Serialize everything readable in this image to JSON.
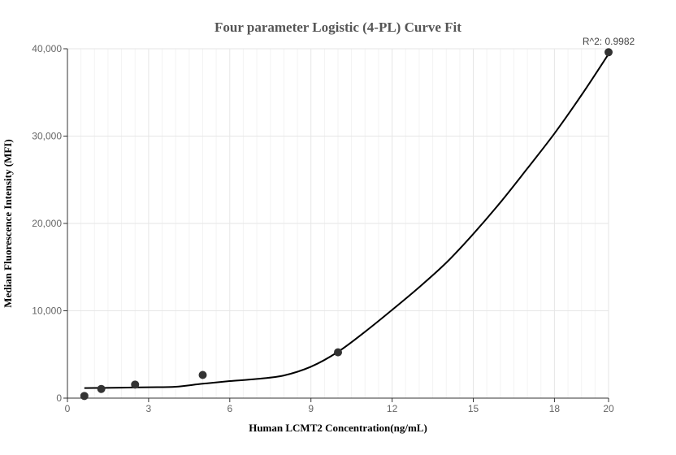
{
  "chart_data": {
    "type": "scatter",
    "title": "Four parameter Logistic (4-PL) Curve Fit",
    "xlabel": "Human LCMT2   Concentration(ng/mL)",
    "ylabel": "Median Fluorescence Intensity (MFI)",
    "xlim": [
      0,
      20
    ],
    "ylim": [
      0,
      40000
    ],
    "x_ticks": [
      0,
      3,
      6,
      9,
      12,
      15,
      18,
      20
    ],
    "y_ticks": [
      0,
      10000,
      20000,
      30000,
      40000
    ],
    "x_tick_labels": [
      "0",
      "3",
      "6",
      "9",
      "12",
      "15",
      "18",
      "20"
    ],
    "y_tick_labels": [
      "0",
      "10,000",
      "20,000",
      "30,000",
      "40,000"
    ],
    "grid": true,
    "points": [
      {
        "x": 0.625,
        "y": 250
      },
      {
        "x": 1.25,
        "y": 1050
      },
      {
        "x": 2.5,
        "y": 1550
      },
      {
        "x": 5,
        "y": 2650
      },
      {
        "x": 10,
        "y": 5250
      },
      {
        "x": 20,
        "y": 39600
      }
    ],
    "fit_curve": [
      {
        "x": 0.625,
        "y": 1150
      },
      {
        "x": 2,
        "y": 1200
      },
      {
        "x": 3,
        "y": 1250
      },
      {
        "x": 4,
        "y": 1300
      },
      {
        "x": 5,
        "y": 1650
      },
      {
        "x": 6,
        "y": 1950
      },
      {
        "x": 7,
        "y": 2200
      },
      {
        "x": 8,
        "y": 2600
      },
      {
        "x": 9,
        "y": 3600
      },
      {
        "x": 10,
        "y": 5300
      },
      {
        "x": 11,
        "y": 7600
      },
      {
        "x": 12,
        "y": 10100
      },
      {
        "x": 13,
        "y": 12700
      },
      {
        "x": 14,
        "y": 15500
      },
      {
        "x": 15,
        "y": 18800
      },
      {
        "x": 16,
        "y": 22400
      },
      {
        "x": 17,
        "y": 26300
      },
      {
        "x": 18,
        "y": 30300
      },
      {
        "x": 19,
        "y": 34700
      },
      {
        "x": 20,
        "y": 39400
      }
    ],
    "annotation": "R^2: 0.9982",
    "colors": {
      "point": "#333333",
      "curve": "#000000",
      "grid_major": "#e6e6e6",
      "grid_minor": "#f3f3f3",
      "axis": "#333333"
    }
  }
}
